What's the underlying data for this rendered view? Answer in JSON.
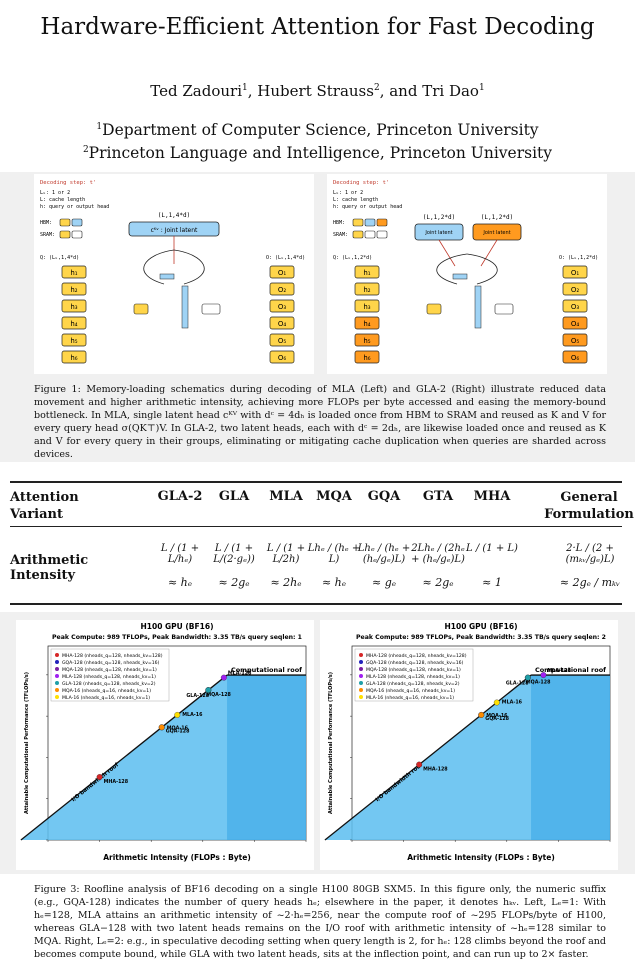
{
  "title": "Hardware-Efficient Attention for Fast Decoding",
  "authors": [
    {
      "name": "Ted Zadouri",
      "aff": "1"
    },
    {
      "name": "Hubert Strauss",
      "aff": "2"
    },
    {
      "name": "Tri Dao",
      "aff": "1"
    }
  ],
  "author_sep": [
    ", ",
    ", and "
  ],
  "affiliations": [
    {
      "num": "1",
      "text": "Department of Computer Science, Princeton University"
    },
    {
      "num": "2",
      "text": "Princeton Language and Intelligence, Princeton University"
    }
  ],
  "figure1": {
    "left": {
      "step": "Decoding step: t'",
      "legend": [
        "Lₖ: 1 or 2",
        "L: cache length",
        "h: query or output head"
      ],
      "mem": [
        "HBM:",
        "SRAM:"
      ],
      "latent_shape": "(L,1,4*d)",
      "latent_label": "cᴷᵛ : Joint latent",
      "q_label": "Q: (Lₖ,1,4*d)",
      "o_label": "O: (Lₖ,1,4*d)",
      "heads": [
        "h₁",
        "h₂",
        "h₃",
        "h₄",
        "h₅",
        "h₆"
      ],
      "outs": [
        "O₁",
        "O₂",
        "O₃",
        "O₄",
        "O₅",
        "O₆"
      ]
    },
    "right": {
      "step": "Decoding step: t'",
      "legend": [
        "Lₖ: 1 or 2",
        "L: cache length",
        "h: query or output head"
      ],
      "mem": [
        "HBM:",
        "SRAM:"
      ],
      "latent_shape_a": "(L,1,2*d)",
      "latent_shape_b": "(L,1,2*d)",
      "latent_label": "Joint latent",
      "q_label": "Q: (Lₖ,1,2*d)",
      "o_label": "O: (Lₖ,1,2*d)",
      "heads": [
        "h₁",
        "h₂",
        "h₃",
        "h₄",
        "h₅",
        "h₆"
      ],
      "outs": [
        "O₁",
        "O₂",
        "O₃",
        "O₄",
        "O₅",
        "O₆"
      ]
    },
    "caption": "Figure 1: Memory-loading schematics during decoding of MLA (Left) and GLA-2 (Right) illustrate reduced data movement and higher arithmetic intensity, achieving more FLOPs per byte accessed and easing the memory-bound bottleneck. In MLA, single latent head cᴷⱽ with dᶜ = 4dₕ is loaded once from HBM to SRAM and reused as K and V for every query head σ(QK⊤)V. In GLA-2, two latent heads, each with dᶜ = 2dₕ, are likewise loaded once and reused as K and V for every query in their groups, eliminating or mitigating cache duplication when queries are sharded across devices."
  },
  "table": {
    "header_col": [
      "Attention",
      "Variant"
    ],
    "columns": [
      "GLA-2",
      "GLA",
      "MLA",
      "MQA",
      "GQA",
      "GTA",
      "MHA"
    ],
    "general": [
      "General",
      "Formulation"
    ],
    "row_label": "Arithmetic Intensity",
    "formulas": [
      "L / (1 + L/hₑ)",
      "L / (1 + L/(2·gₑ))",
      "L / (1 + L/2h)",
      "Lhₑ / (hₑ + L)",
      "Lhₑ / (hₑ + (hₑ/gₑ)L)",
      "2Lhₑ / (2hₑ + (hₑ/gₑ)L)",
      "L / (1 + L)",
      "2·L / (2 + (mₖᵥ/gₑ)L)"
    ],
    "approx": [
      "≈ hₑ",
      "≈ 2gₑ",
      "≈ 2hₑ",
      "≈ hₑ",
      "≈ gₑ",
      "≈ 2gₑ",
      "≈ 1",
      "≈ 2gₑ / mₖᵥ"
    ]
  },
  "chart_data": [
    {
      "type": "scatter",
      "title": "H100 GPU (BF16)",
      "subtitle": "Peak Compute: 989 TFLOPs, Peak Bandwidth: 3.35 TB/s   query seqlen: 1",
      "xlabel": "Arithmetic Intensity (FLOPs : Byte)",
      "ylabel": "Attainable Computational Performance (TFLOPs/s)",
      "xscale": "log",
      "yscale": "log",
      "xlim": [
        0.1,
        10000
      ],
      "ylim": [
        0.1,
        5000
      ],
      "roof_label": "Computational roof",
      "bw_label": "I/O bandwidth roof",
      "roof_value": 989,
      "bandwidth_tbs": 3.35,
      "legend": "top-left",
      "series": [
        {
          "name": "MHA-128 (nheads_q=128, nheads_kv=128)",
          "color": "#d62728",
          "x": 1,
          "y": 3.35,
          "label": "MHA-128"
        },
        {
          "name": "GQA-128 (nheads_q=128, nheads_kv=16)",
          "color": "#2222bb",
          "x": 16,
          "y": 53.6,
          "label": "GQA-128"
        },
        {
          "name": "MQA-128 (nheads_q=128, nheads_kv=1)",
          "color": "#7b1fa2",
          "x": 128,
          "y": 428,
          "label": "MQA-128"
        },
        {
          "name": "MLA-128 (nheads_q=128, nheads_kv=1)",
          "color": "#a020f0",
          "x": 256,
          "y": 857,
          "label": "MLA-128"
        },
        {
          "name": "GLA-128 (nheads_q=128, nheads_kv=2)",
          "color": "#1f9fa8",
          "x": 128,
          "y": 428,
          "label": "GLA-128"
        },
        {
          "name": "MQA-16 (nheads_q=16, nheads_kv=1)",
          "color": "#ff8c00",
          "x": 16,
          "y": 53.6,
          "label": "MQA-16"
        },
        {
          "name": "MLA-16 (nheads_q=16, nheads_kv=1)",
          "color": "#ffe000",
          "x": 32,
          "y": 107,
          "label": "MLA-16"
        }
      ]
    },
    {
      "type": "scatter",
      "title": "H100 GPU (BF16)",
      "subtitle": "Peak Compute: 989 TFLOPs, Peak Bandwidth: 3.35 TB/s   query seqlen: 2",
      "xlabel": "Arithmetic Intensity (FLOPs : Byte)",
      "ylabel": "Attainable Computational Performance (TFLOPs/s)",
      "xscale": "log",
      "yscale": "log",
      "xlim": [
        0.1,
        10000
      ],
      "ylim": [
        0.1,
        5000
      ],
      "roof_label": "Computational roof",
      "bw_label": "I/O bandwidth roof",
      "roof_value": 989,
      "bandwidth_tbs": 3.35,
      "legend": "top-left",
      "series": [
        {
          "name": "MHA-128 (nheads_q=128, nheads_kv=128)",
          "color": "#d62728",
          "x": 2,
          "y": 6.7,
          "label": "MHA-128"
        },
        {
          "name": "GQA-128 (nheads_q=128, nheads_kv=16)",
          "color": "#2222bb",
          "x": 32,
          "y": 107,
          "label": "GQA-128"
        },
        {
          "name": "MQA-128 (nheads_q=128, nheads_kv=1)",
          "color": "#7b1fa2",
          "x": 256,
          "y": 857,
          "label": "MQA-128"
        },
        {
          "name": "MLA-128 (nheads_q=128, nheads_kv=1)",
          "color": "#a020f0",
          "x": 512,
          "y": 989,
          "label": "MLA-128"
        },
        {
          "name": "GLA-128 (nheads_q=128, nheads_kv=2)",
          "color": "#1f9fa8",
          "x": 256,
          "y": 857,
          "label": "GLA-128"
        },
        {
          "name": "MQA-16 (nheads_q=16, nheads_kv=1)",
          "color": "#ff8c00",
          "x": 32,
          "y": 107,
          "label": "MQA-16"
        },
        {
          "name": "MLA-16 (nheads_q=16, nheads_kv=1)",
          "color": "#ffe000",
          "x": 64,
          "y": 214,
          "label": "MLA-16"
        }
      ]
    }
  ],
  "figure3_caption": "Figure 3: Roofline analysis of BF16 decoding on a single H100 80GB SXM5. In this figure only, the numeric suffix (e.g., GQA-128) indicates the number of query heads hₑ; elsewhere in the paper, it denotes hₖᵥ. Left, Lₑ=1: With hₑ=128, MLA attains an arithmetic intensity of ~2·hₑ=256, near the compute roof of ~295 FLOPs/byte of H100, whereas GLA−128 with two latent heads remains on the I/O roof with arithmetic intensity of ~hₑ=128 similar to MQA. Right, Lₑ=2: e.g., in speculative decoding setting when query length is 2, for hₑ: 128 climbs beyond the roof and becomes compute bound, while GLA with two latent heads, sits at the inflection point, and can run up to 2× faster.",
  "colors": {
    "roof_fill": "#5bbdf0",
    "roof_fill_dark": "#3aa6e6",
    "band": "#f0f0f0",
    "head_yellow": "#ffd54a",
    "head_orange": "#ff9a1f",
    "latent_blue": "#9fd3f5"
  }
}
